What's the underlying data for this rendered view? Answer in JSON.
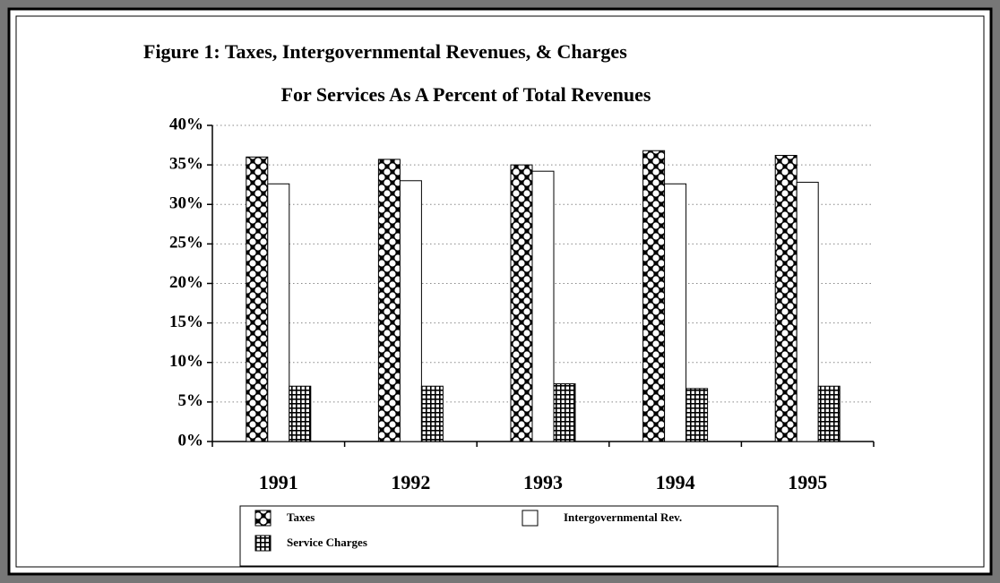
{
  "chart_data": {
    "type": "bar",
    "title": "Figure 1:  Taxes, Intergovernmental Revenues, & Charges",
    "subtitle": "For Services As A Percent of Total Revenues",
    "categories": [
      "1991",
      "1992",
      "1993",
      "1994",
      "1995"
    ],
    "series": [
      {
        "name": "Taxes",
        "color": "#000000",
        "values": [
          36,
          35.7,
          35,
          36.8,
          36.2
        ]
      },
      {
        "name": "Intergovernmental Rev.",
        "color": "#ffffff",
        "values": [
          32.6,
          33,
          34.2,
          32.6,
          32.8
        ]
      },
      {
        "name": "Service Charges",
        "color": "#000000",
        "values": [
          7,
          7,
          7.3,
          6.7,
          7
        ]
      }
    ],
    "ylim": [
      0,
      40
    ],
    "yticks": [
      {
        "value": 0,
        "label": "0%"
      },
      {
        "value": 5,
        "label": "5%"
      },
      {
        "value": 10,
        "label": "10%"
      },
      {
        "value": 15,
        "label": "15%"
      },
      {
        "value": 20,
        "label": "20%"
      },
      {
        "value": 25,
        "label": "25%"
      },
      {
        "value": 30,
        "label": "30%"
      },
      {
        "value": 35,
        "label": "35%"
      },
      {
        "value": 40,
        "label": "40%"
      }
    ],
    "grid": true,
    "legend": "bottom"
  }
}
